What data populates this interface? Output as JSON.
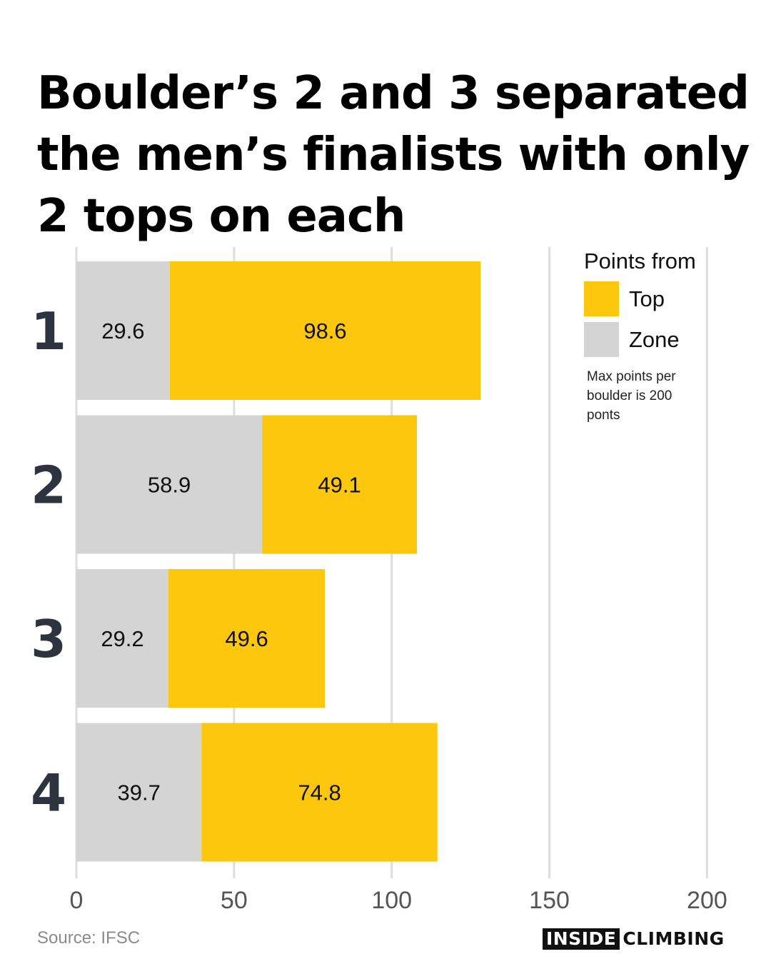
{
  "title": "Boulder’s 2 and 3 separated the men’s finalists with only 2 tops on each",
  "legend": {
    "title": "Points from",
    "items": [
      {
        "label": "Top",
        "color": "#FCC70D"
      },
      {
        "label": "Zone",
        "color": "#D4D4D4"
      }
    ],
    "note": "Max points per boulder is 200 ponts"
  },
  "source": "Source: IFSC",
  "brand": {
    "boxed": "INSIDE",
    "text": "CLIMBING"
  },
  "chart_data": {
    "type": "bar",
    "orientation": "horizontal",
    "stacked": true,
    "categories": [
      "1",
      "2",
      "3",
      "4"
    ],
    "series": [
      {
        "name": "Zone",
        "color": "#D4D4D4",
        "values": [
          29.6,
          58.9,
          29.2,
          39.7
        ]
      },
      {
        "name": "Top",
        "color": "#FCC70D",
        "values": [
          98.6,
          49.1,
          49.6,
          74.8
        ]
      }
    ],
    "xlim": [
      0,
      200
    ],
    "xticks": [
      0,
      50,
      100,
      150,
      200
    ],
    "grid": true,
    "legend_position": "top-right"
  }
}
